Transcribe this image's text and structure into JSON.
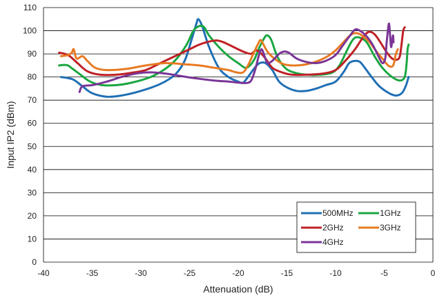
{
  "chart_data": {
    "type": "line",
    "title": "",
    "xlabel": "Attenuation (dB)",
    "ylabel": "Input IP2 (dBm)",
    "xlim": [
      -40,
      0
    ],
    "ylim": [
      0,
      110
    ],
    "x_ticks": [
      -40,
      -35,
      -30,
      -25,
      -20,
      -15,
      -10,
      -5,
      0
    ],
    "y_ticks": [
      0,
      10,
      20,
      30,
      40,
      50,
      60,
      70,
      80,
      90,
      100,
      110
    ],
    "x_tick_labels": [
      "-40",
      "-35",
      "-30",
      "-25",
      "-20",
      "-15",
      "-10",
      "-5",
      "0"
    ],
    "y_tick_labels": [
      "0",
      "10",
      "20",
      "30",
      "40",
      "50",
      "60",
      "70",
      "80",
      "90",
      "100",
      "110"
    ],
    "grid": "horizontal",
    "legend_position": "bottom-right",
    "series": [
      {
        "name": "500MHz",
        "color": "#1f6fb5",
        "points": [
          [
            -38.2,
            80
          ],
          [
            -37,
            79
          ],
          [
            -36,
            76
          ],
          [
            -35,
            73
          ],
          [
            -33.5,
            71.5
          ],
          [
            -32,
            72
          ],
          [
            -30,
            74
          ],
          [
            -28,
            77
          ],
          [
            -26.5,
            81
          ],
          [
            -25.5,
            87
          ],
          [
            -24.8,
            96
          ],
          [
            -24.3,
            103
          ],
          [
            -24.1,
            105
          ],
          [
            -23.7,
            102
          ],
          [
            -23,
            93
          ],
          [
            -22,
            84
          ],
          [
            -21,
            80
          ],
          [
            -20,
            78
          ],
          [
            -19.5,
            77.5
          ],
          [
            -19,
            80
          ],
          [
            -18.3,
            84
          ],
          [
            -17.8,
            86
          ],
          [
            -17.2,
            86
          ],
          [
            -16.5,
            83
          ],
          [
            -15.8,
            78
          ],
          [
            -15,
            75.5
          ],
          [
            -14,
            74
          ],
          [
            -13,
            74
          ],
          [
            -12,
            75
          ],
          [
            -11,
            76.5
          ],
          [
            -10,
            78
          ],
          [
            -9.2,
            82
          ],
          [
            -8.6,
            86
          ],
          [
            -8,
            87
          ],
          [
            -7.5,
            86.5
          ],
          [
            -7,
            84
          ],
          [
            -6.3,
            80
          ],
          [
            -5.5,
            76
          ],
          [
            -4.5,
            73
          ],
          [
            -3.8,
            72
          ],
          [
            -3.2,
            73
          ],
          [
            -2.8,
            76
          ],
          [
            -2.5,
            80
          ]
        ]
      },
      {
        "name": "1GHz",
        "color": "#1aa640",
        "points": [
          [
            -38.4,
            85
          ],
          [
            -38,
            85.2
          ],
          [
            -37.5,
            85
          ],
          [
            -37,
            83.5
          ],
          [
            -36.2,
            81
          ],
          [
            -35.2,
            78
          ],
          [
            -34,
            76.5
          ],
          [
            -32.5,
            76.5
          ],
          [
            -31,
            77.5
          ],
          [
            -29,
            80
          ],
          [
            -27.5,
            83.5
          ],
          [
            -26.3,
            88
          ],
          [
            -25.3,
            94
          ],
          [
            -24.6,
            100
          ],
          [
            -24,
            102
          ],
          [
            -23.5,
            101.5
          ],
          [
            -23,
            98
          ],
          [
            -22,
            93
          ],
          [
            -21,
            89
          ],
          [
            -20,
            86
          ],
          [
            -19.3,
            84
          ],
          [
            -18.8,
            85
          ],
          [
            -18.3,
            88
          ],
          [
            -17.8,
            93
          ],
          [
            -17.3,
            97
          ],
          [
            -17,
            98
          ],
          [
            -16.6,
            96
          ],
          [
            -16,
            89
          ],
          [
            -15.2,
            84
          ],
          [
            -14.3,
            82
          ],
          [
            -13,
            81
          ],
          [
            -11.5,
            81
          ],
          [
            -10.3,
            82
          ],
          [
            -9.6,
            85
          ],
          [
            -9,
            90
          ],
          [
            -8.4,
            95
          ],
          [
            -8,
            97
          ],
          [
            -7.5,
            97
          ],
          [
            -6.8,
            95
          ],
          [
            -6,
            89
          ],
          [
            -5.2,
            84
          ],
          [
            -4.2,
            80
          ],
          [
            -3.4,
            78.5
          ],
          [
            -2.9,
            80
          ],
          [
            -2.7,
            86
          ],
          [
            -2.6,
            92
          ],
          [
            -2.5,
            94
          ]
        ]
      },
      {
        "name": "2GHz",
        "color": "#bf2126",
        "points": [
          [
            -38.4,
            90.5
          ],
          [
            -37.8,
            90
          ],
          [
            -37.3,
            89
          ],
          [
            -36.5,
            86
          ],
          [
            -35.5,
            82.5
          ],
          [
            -34.2,
            81
          ],
          [
            -32.5,
            81
          ],
          [
            -31,
            81.8
          ],
          [
            -29.5,
            83
          ],
          [
            -28,
            86
          ],
          [
            -26.5,
            89
          ],
          [
            -25,
            92
          ],
          [
            -24,
            94
          ],
          [
            -23,
            95.3
          ],
          [
            -22.2,
            95.8
          ],
          [
            -21.5,
            95
          ],
          [
            -20.5,
            93
          ],
          [
            -19.5,
            91
          ],
          [
            -18.7,
            90
          ],
          [
            -18.2,
            91.5
          ],
          [
            -17.8,
            90.8
          ],
          [
            -17.2,
            88
          ],
          [
            -16.5,
            84
          ],
          [
            -15.5,
            82
          ],
          [
            -14.5,
            81
          ],
          [
            -13,
            81
          ],
          [
            -11.3,
            81.5
          ],
          [
            -10,
            83
          ],
          [
            -9,
            87
          ],
          [
            -8,
            92
          ],
          [
            -7.2,
            97
          ],
          [
            -6.6,
            99.5
          ],
          [
            -6,
            98.5
          ],
          [
            -5.4,
            95
          ],
          [
            -4.8,
            91
          ],
          [
            -4.2,
            88
          ],
          [
            -3.7,
            87.5
          ],
          [
            -3.4,
            89
          ],
          [
            -3.2,
            95
          ],
          [
            -3.05,
            100
          ],
          [
            -2.9,
            101.5
          ]
        ]
      },
      {
        "name": "3GHz",
        "color": "#e87a22",
        "points": [
          [
            -38.2,
            89
          ],
          [
            -37.5,
            89.5
          ],
          [
            -37.1,
            90.5
          ],
          [
            -36.9,
            92
          ],
          [
            -36.6,
            88
          ],
          [
            -36,
            89
          ],
          [
            -35.5,
            87
          ],
          [
            -34.7,
            84
          ],
          [
            -33.5,
            83
          ],
          [
            -31.5,
            83.5
          ],
          [
            -29.5,
            85
          ],
          [
            -27.5,
            86
          ],
          [
            -25.5,
            85.5
          ],
          [
            -24,
            85
          ],
          [
            -22.5,
            84
          ],
          [
            -21,
            83
          ],
          [
            -20.2,
            82
          ],
          [
            -19.5,
            82
          ],
          [
            -19,
            85
          ],
          [
            -18.5,
            89.5
          ],
          [
            -18,
            94
          ],
          [
            -17.7,
            96
          ],
          [
            -17.4,
            94
          ],
          [
            -17,
            91
          ],
          [
            -16.3,
            88
          ],
          [
            -15.3,
            85.5
          ],
          [
            -14,
            85
          ],
          [
            -12.5,
            86
          ],
          [
            -11,
            88.5
          ],
          [
            -10,
            91.5
          ],
          [
            -9.2,
            95
          ],
          [
            -8.5,
            98
          ],
          [
            -8,
            99
          ],
          [
            -7.5,
            98.5
          ],
          [
            -7,
            97
          ],
          [
            -6.5,
            95
          ],
          [
            -5.8,
            91
          ],
          [
            -5.2,
            88
          ],
          [
            -4.6,
            85
          ],
          [
            -4.2,
            84.5
          ],
          [
            -4.0,
            86
          ],
          [
            -3.8,
            90
          ],
          [
            -3.6,
            92
          ]
        ]
      },
      {
        "name": "4GHz",
        "color": "#7a3596",
        "points": [
          [
            -36.3,
            73.5
          ],
          [
            -36,
            76
          ],
          [
            -35,
            76.5
          ],
          [
            -33.5,
            78
          ],
          [
            -32,
            80
          ],
          [
            -30.5,
            81.5
          ],
          [
            -29,
            82
          ],
          [
            -27.5,
            81.5
          ],
          [
            -26,
            80.5
          ],
          [
            -24.5,
            79.5
          ],
          [
            -22.5,
            78.5
          ],
          [
            -21,
            78
          ],
          [
            -19.8,
            77.5
          ],
          [
            -19,
            77.5
          ],
          [
            -18.6,
            79
          ],
          [
            -18.2,
            84
          ],
          [
            -17.9,
            89
          ],
          [
            -17.6,
            92
          ],
          [
            -17.3,
            89
          ],
          [
            -17,
            86
          ],
          [
            -16.5,
            87
          ],
          [
            -15.8,
            90
          ],
          [
            -15.3,
            91
          ],
          [
            -14.8,
            90.5
          ],
          [
            -14,
            88
          ],
          [
            -13,
            86.5
          ],
          [
            -12,
            86
          ],
          [
            -11,
            87
          ],
          [
            -10,
            89.5
          ],
          [
            -9.2,
            94
          ],
          [
            -8.5,
            98
          ],
          [
            -8,
            100.5
          ],
          [
            -7.5,
            100
          ],
          [
            -6.8,
            97.5
          ],
          [
            -6.2,
            94
          ],
          [
            -5.6,
            89
          ],
          [
            -5.2,
            86
          ],
          [
            -4.9,
            88
          ],
          [
            -4.75,
            95
          ],
          [
            -4.6,
            101
          ],
          [
            -4.5,
            103
          ],
          [
            -4.4,
            98
          ],
          [
            -4.3,
            93
          ],
          [
            -4.2,
            95
          ],
          [
            -4.1,
            98
          ],
          [
            -4.05,
            95
          ]
        ]
      }
    ]
  }
}
